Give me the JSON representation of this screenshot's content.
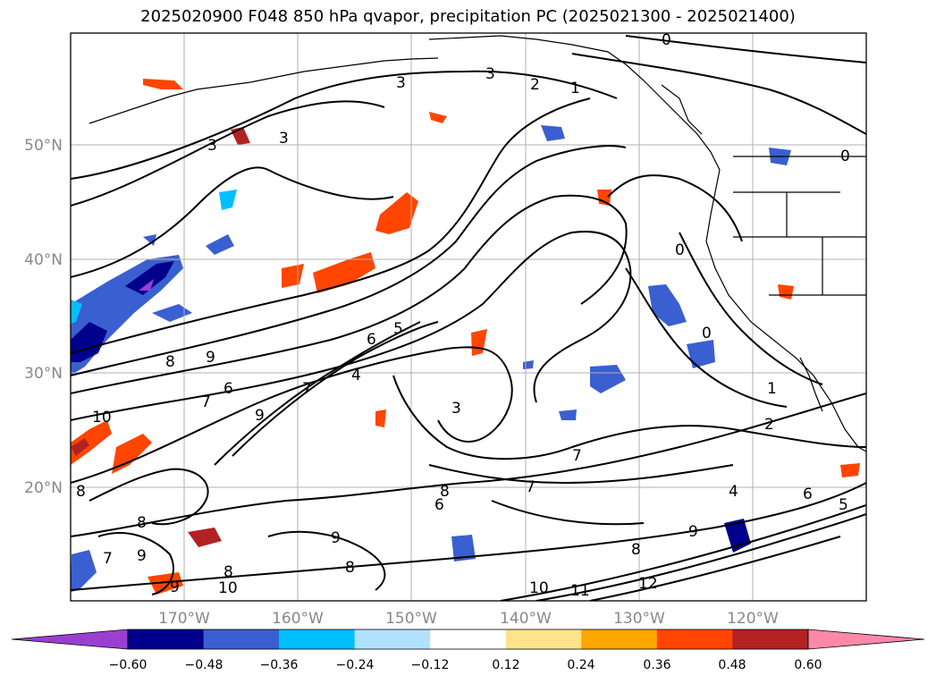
{
  "title": "2025020900 F048 850 hPa qvapor, precipitation PC (2025021300 - 2025021400)",
  "lat_labels": [
    "50°N",
    "40°N",
    "30°N",
    "20°N"
  ],
  "lon_labels": [
    "170°W",
    "160°W",
    "150°W",
    "140°W",
    "130°W",
    "120°W"
  ],
  "colorbar": {
    "labels": [
      "−0.60",
      "−0.48",
      "−0.36",
      "−0.24",
      "−0.12",
      "0.12",
      "0.24",
      "0.36",
      "0.48",
      "0.60"
    ],
    "colors": [
      "#9a3fd1",
      "#00008c",
      "#3a5fd0",
      "#00bfff",
      "#b0e2ff",
      "#ffffff",
      "#fde48b",
      "#ffa500",
      "#ff4500",
      "#b22222",
      "#ff88aa"
    ]
  },
  "contour_labels": [
    "0",
    "1",
    "2",
    "3",
    "4",
    "5",
    "6",
    "7",
    "8",
    "9",
    "10",
    "11",
    "12"
  ],
  "colors": {
    "frame": "#000000",
    "grid": "#b0b0b0",
    "coast": "#000000",
    "tick_label": "#888888"
  }
}
